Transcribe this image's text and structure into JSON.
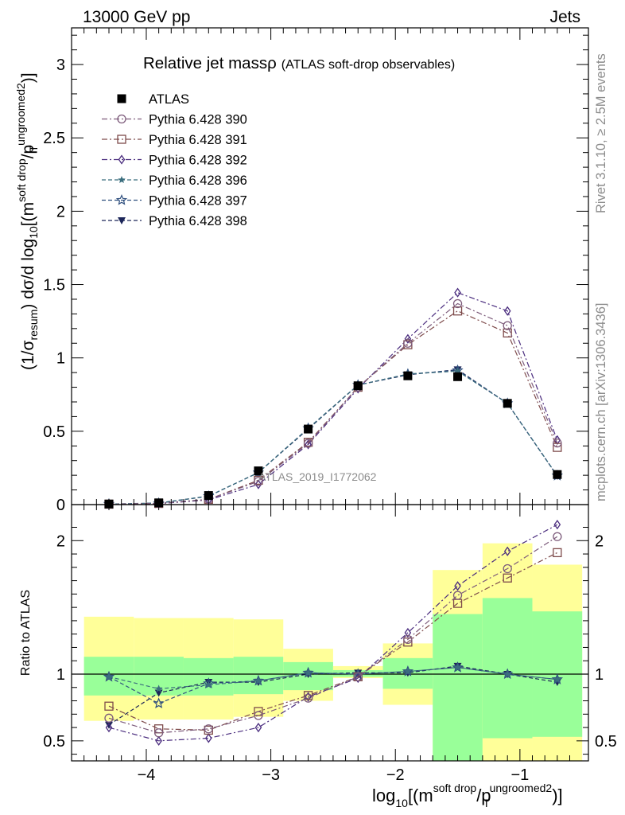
{
  "header": {
    "left": "13000 GeV pp",
    "right": "Jets"
  },
  "side_labels": {
    "rivet": "Rivet 3.1.10, ≥ 2.5M events",
    "mcplots": "mcplots.cern.ch [arXiv:1306.3436]"
  },
  "chart_data": [
    {
      "type": "scatter",
      "panel": "main",
      "title_main": "Relative jet massρ",
      "title_sub": "(ATLAS soft-drop observables)",
      "watermark": "ATLAS_2019_I1772062",
      "ylabel": {
        "prefix": "(1/σ",
        "prefix_sub": "resum",
        "middle": ") dσ/d log",
        "log_sub": "10",
        "open": "[(m",
        "sup1": "soft drop",
        "slash": "/p",
        "sub2": "T",
        "sup2": "ungroomed",
        "close_sup": "2",
        "close": ")]"
      },
      "xlim": [
        -4.6,
        -0.45
      ],
      "ylim": [
        0,
        3.25
      ],
      "yticks": [
        {
          "value": 0,
          "label": "0"
        },
        {
          "value": 0.5,
          "label": "0.5"
        },
        {
          "value": 1,
          "label": "1"
        },
        {
          "value": 1.5,
          "label": "1.5"
        },
        {
          "value": 2,
          "label": "2"
        },
        {
          "value": 2.5,
          "label": "2.5"
        },
        {
          "value": 3,
          "label": "3"
        }
      ],
      "x": [
        -4.3,
        -3.9,
        -3.5,
        -3.1,
        -2.7,
        -2.3,
        -1.9,
        -1.5,
        -1.1,
        -0.7
      ],
      "series": [
        {
          "name": "ATLAS",
          "marker": "square-filled",
          "color": "#000000",
          "style": "none",
          "values": [
            0.004,
            0.012,
            0.062,
            0.23,
            0.515,
            0.81,
            0.878,
            0.872,
            0.69,
            0.205
          ]
        },
        {
          "name": "Pythia 6.428 390",
          "marker": "circle-open",
          "color": "#7c5a7a",
          "style": "dashdot",
          "values": [
            0.003,
            0.008,
            0.036,
            0.158,
            0.418,
            0.8,
            1.1,
            1.37,
            1.22,
            0.42
          ]
        },
        {
          "name": "Pythia 6.428 391",
          "marker": "square-open",
          "color": "#7e4b4b",
          "style": "dashdot",
          "values": [
            0.003,
            0.008,
            0.036,
            0.166,
            0.425,
            0.8,
            1.09,
            1.32,
            1.17,
            0.39
          ]
        },
        {
          "name": "Pythia 6.428 392",
          "marker": "diamond-open",
          "color": "#4a2c7e",
          "style": "dashdot",
          "values": [
            0.0025,
            0.006,
            0.032,
            0.138,
            0.41,
            0.79,
            1.13,
            1.445,
            1.32,
            0.44
          ]
        },
        {
          "name": "Pythia 6.428 396",
          "marker": "star-filled",
          "color": "#3b6e7e",
          "style": "dashed",
          "values": [
            0.004,
            0.011,
            0.058,
            0.218,
            0.52,
            0.815,
            0.89,
            0.91,
            0.69,
            0.197
          ]
        },
        {
          "name": "Pythia 6.428 397",
          "marker": "star-open",
          "color": "#2f4f7e",
          "style": "dashed",
          "values": [
            0.004,
            0.009,
            0.057,
            0.218,
            0.52,
            0.815,
            0.89,
            0.915,
            0.69,
            0.197
          ]
        },
        {
          "name": "Pythia 6.428 398",
          "marker": "triangle-down-filled",
          "color": "#1c2659",
          "style": "dashed",
          "values": [
            0.0025,
            0.011,
            0.058,
            0.218,
            0.515,
            0.815,
            0.885,
            0.92,
            0.69,
            0.195
          ]
        }
      ]
    },
    {
      "type": "scatter",
      "panel": "ratio",
      "ylabel": "Ratio to ATLAS",
      "xlabel": {
        "prefix": "log",
        "log_sub": "10",
        "open": "[(m",
        "sup1": "soft drop",
        "slash": "/p",
        "sub2": "T",
        "sup2": "ungroomed",
        "close_sup": "2",
        "close": ")]"
      },
      "xlim": [
        -4.6,
        -0.45
      ],
      "ylim": [
        0.35,
        2.27
      ],
      "xticks": [
        {
          "value": -4,
          "label": "−4"
        },
        {
          "value": -3,
          "label": "−3"
        },
        {
          "value": -2,
          "label": "−2"
        },
        {
          "value": -1,
          "label": "−1"
        }
      ],
      "yticks": [
        {
          "value": 0.5,
          "label": "0.5"
        },
        {
          "value": 1,
          "label": "1"
        },
        {
          "value": 2,
          "label": "2"
        }
      ],
      "bins": [
        -4.5,
        -4.1,
        -3.7,
        -3.3,
        -2.9,
        -2.5,
        -2.1,
        -1.7,
        -1.3,
        -0.9,
        -0.5
      ],
      "band_total": [
        [
          0.65,
          1.43
        ],
        [
          0.66,
          1.42
        ],
        [
          0.66,
          1.42
        ],
        [
          0.68,
          1.41
        ],
        [
          0.8,
          1.19
        ],
        [
          0.97,
          1.06
        ],
        [
          0.77,
          1.23
        ],
        [
          0.35,
          1.78
        ],
        [
          0.35,
          1.98
        ],
        [
          0.35,
          1.82
        ]
      ],
      "band_stat": [
        [
          0.84,
          1.13
        ],
        [
          0.84,
          1.13
        ],
        [
          0.84,
          1.12
        ],
        [
          0.85,
          1.13
        ],
        [
          0.88,
          1.09
        ],
        [
          0.98,
          1.03
        ],
        [
          0.89,
          1.12
        ],
        [
          0.35,
          1.45
        ],
        [
          0.52,
          1.57
        ],
        [
          0.53,
          1.47
        ]
      ],
      "band_colors": {
        "total": "#ffff99",
        "stat": "#99ff99"
      },
      "series": [
        {
          "name": "Pythia 6.428 390",
          "values": [
            0.67,
            0.56,
            0.59,
            0.69,
            0.82,
            0.98,
            1.26,
            1.59,
            1.79,
            2.03
          ]
        },
        {
          "name": "Pythia 6.428 391",
          "values": [
            0.76,
            0.59,
            0.58,
            0.72,
            0.84,
            0.98,
            1.24,
            1.53,
            1.72,
            1.91
          ]
        },
        {
          "name": "Pythia 6.428 392",
          "values": [
            0.6,
            0.5,
            0.52,
            0.6,
            0.83,
            0.97,
            1.31,
            1.66,
            1.92,
            2.12
          ]
        },
        {
          "name": "Pythia 6.428 396",
          "values": [
            0.98,
            0.89,
            0.92,
            0.95,
            1.01,
            1.0,
            1.02,
            1.05,
            1.0,
            0.96
          ]
        },
        {
          "name": "Pythia 6.428 397",
          "values": [
            0.98,
            0.78,
            0.93,
            0.95,
            1.01,
            1.0,
            1.02,
            1.05,
            1.0,
            0.96
          ]
        },
        {
          "name": "Pythia 6.428 398",
          "values": [
            0.62,
            0.86,
            0.94,
            0.94,
            1.0,
            1.01,
            1.01,
            1.06,
            1.0,
            0.94
          ]
        }
      ],
      "reference_line": 1
    }
  ]
}
